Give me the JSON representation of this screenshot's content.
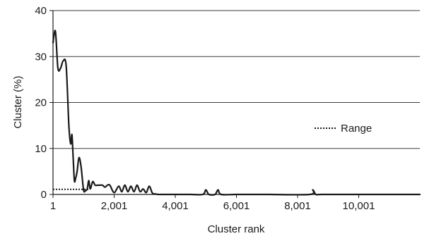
{
  "chart_data": {
    "type": "line",
    "title": "",
    "xlabel": "Cluster rank",
    "ylabel": "Cluster (%)",
    "xlim": [
      1,
      12001
    ],
    "ylim": [
      0,
      40
    ],
    "x_ticks": [
      1,
      2001,
      4001,
      6001,
      8001,
      10001
    ],
    "x_tick_labels": [
      "1",
      "2,001",
      "4,001",
      "6,001",
      "8,001",
      "10,001"
    ],
    "y_ticks": [
      0,
      10,
      20,
      30,
      40
    ],
    "y_tick_labels": [
      "0",
      "10",
      "20",
      "30",
      "40"
    ],
    "grid": "horizontal",
    "legend": {
      "position": "right",
      "entries": [
        {
          "label": "Range",
          "style": "dotted"
        }
      ]
    },
    "series": [
      {
        "style": "solid",
        "color": "#1a1a1a",
        "x": [
          1,
          80,
          160,
          250,
          330,
          430,
          520,
          580,
          620,
          660,
          700,
          740,
          790,
          850,
          920,
          1000,
          1060,
          1120,
          1170,
          1220,
          1300,
          1380,
          1460,
          1540,
          1620,
          1700,
          1780,
          1860,
          2000,
          2150,
          2250,
          2350,
          2450,
          2550,
          2650,
          2750,
          2850,
          2950,
          3050,
          3150,
          3250,
          3350,
          3450,
          3550,
          3700,
          4000,
          4500,
          4900,
          5000,
          5100,
          5300,
          5400,
          5500,
          6000,
          7000,
          8400,
          8500,
          8600,
          8800,
          10000,
          11000,
          12001
        ],
        "y": [
          33,
          35.5,
          27.5,
          27.5,
          29,
          28,
          15,
          11,
          13,
          8,
          3,
          3.5,
          5,
          8,
          6,
          1,
          0.8,
          1.2,
          3,
          1.2,
          2.8,
          2,
          2,
          2,
          2,
          1.6,
          2,
          2,
          0.4,
          1.8,
          0.6,
          2,
          0.6,
          1.8,
          0.6,
          2,
          0.6,
          1.2,
          0.4,
          1.8,
          0.3,
          0.1,
          0,
          0,
          0,
          0,
          0,
          0,
          1,
          0,
          0,
          1,
          0,
          0,
          0,
          0,
          1,
          0,
          0,
          0,
          0,
          0
        ]
      },
      {
        "name": "Range",
        "style": "dotted",
        "color": "#1a1a1a",
        "x": [
          1,
          1200
        ],
        "y": [
          1.1,
          1.1
        ]
      }
    ]
  }
}
